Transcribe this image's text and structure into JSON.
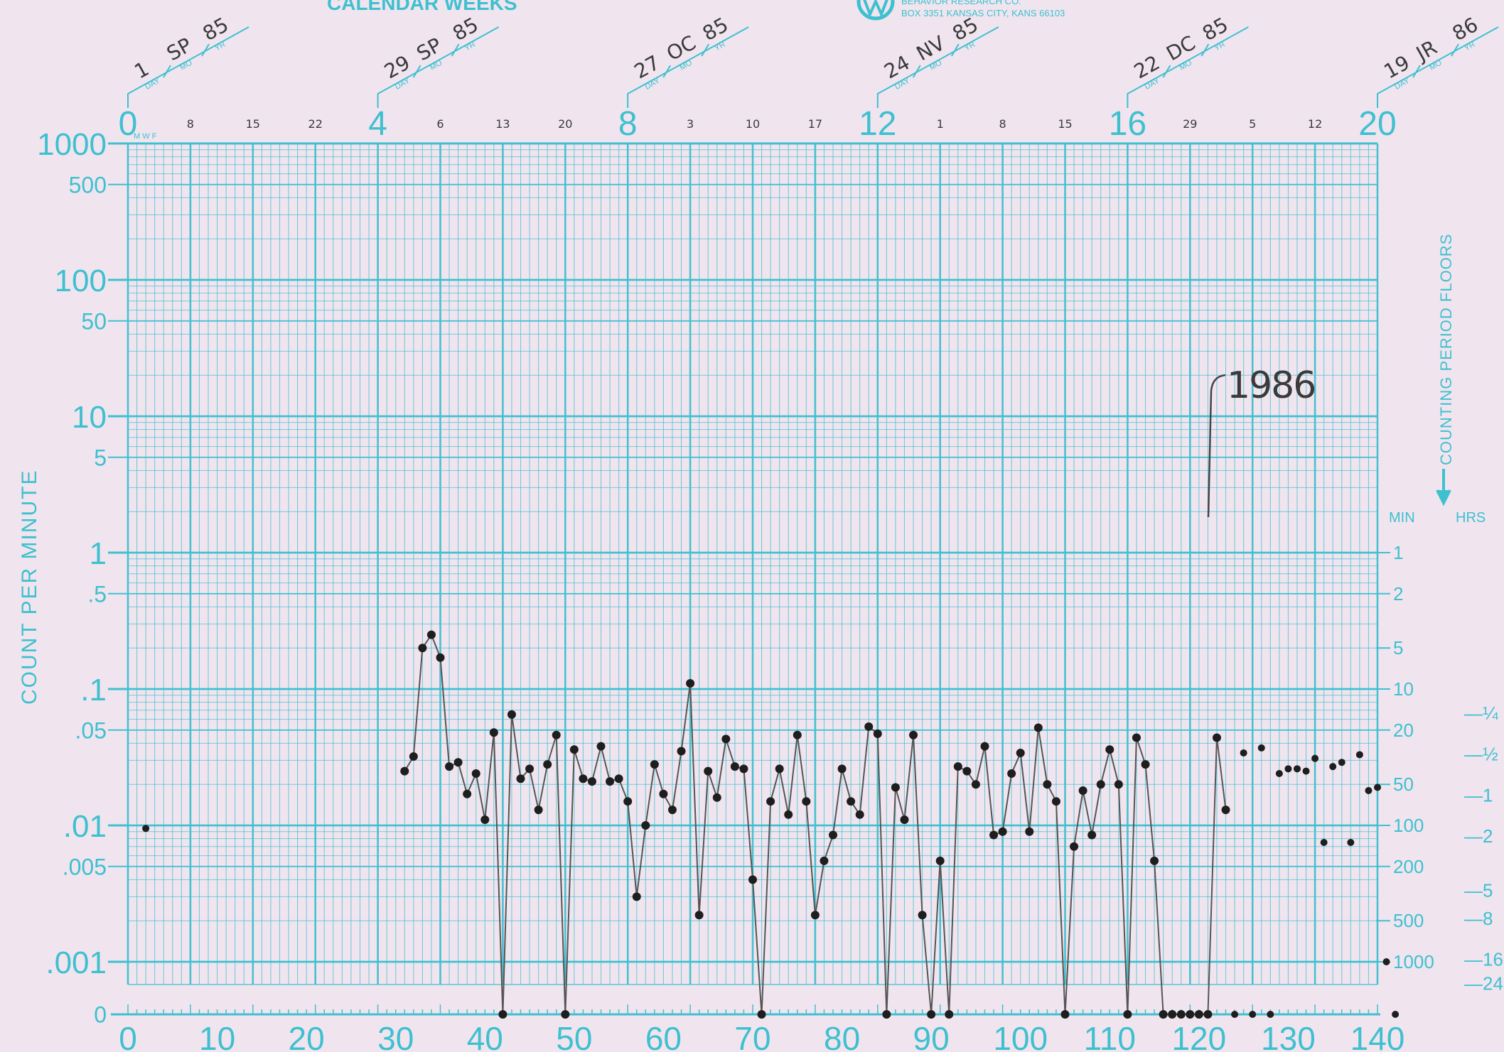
{
  "header": {
    "title": "CALENDAR WEEKS",
    "publisher": "BEHAVIOR RESEARCH CO.",
    "address": "BOX 3351 KANSAS CITY, KANS 66103"
  },
  "calendar_labels": {
    "day": "DAY",
    "month": "MO",
    "year": "YR",
    "dates": [
      {
        "week": 0,
        "day": "1",
        "mo": "SP",
        "yr": "85"
      },
      {
        "week": 4,
        "day": "29",
        "mo": "SP",
        "yr": "85"
      },
      {
        "week": 8,
        "day": "27",
        "mo": "OC",
        "yr": "85"
      },
      {
        "week": 12,
        "day": "24",
        "mo": "NV",
        "yr": "85"
      },
      {
        "week": 16,
        "day": "22",
        "mo": "DC",
        "yr": "85"
      },
      {
        "week": 20,
        "day": "19",
        "mo": "JR",
        "yr": "86"
      }
    ],
    "mwf": "M W F",
    "small_dates": [
      "8",
      "15",
      "22",
      "6",
      "13",
      "20",
      "3",
      "10",
      "17",
      "1",
      "8",
      "15",
      "29",
      "5",
      "12"
    ]
  },
  "week_numbers": [
    "0",
    "4",
    "8",
    "12",
    "16",
    "20"
  ],
  "left_axis": {
    "label": "COUNT PER MINUTE",
    "ticks": [
      "1000",
      "500",
      "100",
      "50",
      "10",
      "5",
      "1",
      ".5",
      ".1",
      ".05",
      ".01",
      ".005",
      ".001",
      "0"
    ]
  },
  "right_axis": {
    "label": "COUNTING PERIOD FLOORS",
    "min_label": "MIN",
    "hrs_label": "HRS",
    "min_ticks": [
      "1",
      "2",
      "5",
      "10",
      "20",
      "50",
      "100",
      "200",
      "500",
      "1000"
    ],
    "hrs_ticks": [
      "¼",
      "½",
      "1",
      "2",
      "5",
      "8",
      "16",
      "24"
    ]
  },
  "annotation": "1986",
  "accent_color": "#3fc0cf",
  "chart_data": {
    "type": "scatter",
    "title": "",
    "xlabel": "",
    "ylabel": "COUNT PER MINUTE",
    "xlim": [
      0,
      140
    ],
    "ylim": [
      0.001,
      1000
    ],
    "y_scale": "log",
    "x_ticks": [
      "0",
      "10",
      "20",
      "30",
      "40",
      "50",
      "60",
      "70",
      "80",
      "90",
      "100",
      "110",
      "120",
      "130",
      "140"
    ],
    "grid": true,
    "series": [
      {
        "connected": true,
        "points": [
          [
            31,
            0.025
          ],
          [
            32,
            0.032
          ],
          [
            33,
            0.2
          ],
          [
            34,
            0.25
          ],
          [
            35,
            0.17
          ],
          [
            36,
            0.027
          ],
          [
            37,
            0.029
          ],
          [
            38,
            0.017
          ],
          [
            39,
            0.024
          ],
          [
            40,
            0.011
          ],
          [
            41,
            0.048
          ],
          [
            42,
            0
          ],
          [
            43,
            0.065
          ],
          [
            44,
            0.022
          ],
          [
            45,
            0.026
          ],
          [
            46,
            0.013
          ],
          [
            47,
            0.028
          ],
          [
            48,
            0.046
          ],
          [
            49,
            0
          ],
          [
            50,
            0.036
          ],
          [
            51,
            0.022
          ],
          [
            52,
            0.021
          ],
          [
            53,
            0.038
          ],
          [
            54,
            0.021
          ],
          [
            55,
            0.022
          ],
          [
            56,
            0.015
          ],
          [
            57,
            0.003
          ],
          [
            58,
            0.01
          ],
          [
            59,
            0.028
          ],
          [
            60,
            0.017
          ],
          [
            61,
            0.013
          ],
          [
            62,
            0.035
          ],
          [
            63,
            0.11
          ],
          [
            64,
            0.0022
          ],
          [
            65,
            0.025
          ],
          [
            66,
            0.016
          ],
          [
            67,
            0.043
          ],
          [
            68,
            0.027
          ],
          [
            69,
            0.026
          ],
          [
            70,
            0.004
          ],
          [
            71,
            0
          ],
          [
            72,
            0.015
          ],
          [
            73,
            0.026
          ],
          [
            74,
            0.012
          ],
          [
            75,
            0.046
          ],
          [
            76,
            0.015
          ],
          [
            77,
            0.0022
          ],
          [
            78,
            0.0055
          ],
          [
            79,
            0.0085
          ],
          [
            80,
            0.026
          ],
          [
            81,
            0.015
          ],
          [
            82,
            0.012
          ],
          [
            83,
            0.053
          ],
          [
            84,
            0.047
          ],
          [
            85,
            0
          ],
          [
            86,
            0.019
          ],
          [
            87,
            0.011
          ],
          [
            88,
            0.046
          ],
          [
            89,
            0.0022
          ],
          [
            90,
            0
          ],
          [
            91,
            0.0055
          ],
          [
            92,
            0
          ],
          [
            93,
            0.027
          ],
          [
            94,
            0.025
          ],
          [
            95,
            0.02
          ],
          [
            96,
            0.038
          ],
          [
            97,
            0.0085
          ],
          [
            98,
            0.009
          ],
          [
            99,
            0.024
          ],
          [
            100,
            0.034
          ],
          [
            101,
            0.009
          ],
          [
            102,
            0.052
          ],
          [
            103,
            0.02
          ],
          [
            104,
            0.015
          ],
          [
            105,
            0
          ],
          [
            106,
            0.007
          ],
          [
            107,
            0.018
          ],
          [
            108,
            0.0085
          ],
          [
            109,
            0.02
          ],
          [
            110,
            0.036
          ],
          [
            111,
            0.02
          ],
          [
            112,
            0
          ],
          [
            113,
            0.044
          ],
          [
            114,
            0.028
          ],
          [
            115,
            0.0055
          ],
          [
            116,
            0
          ],
          [
            117,
            0
          ],
          [
            118,
            0
          ],
          [
            119,
            0
          ],
          [
            120,
            0
          ],
          [
            121,
            0
          ],
          [
            122,
            0.044
          ],
          [
            123,
            0.013
          ]
        ]
      },
      {
        "connected": false,
        "points": [
          [
            124,
            0
          ],
          [
            125,
            0.034
          ],
          [
            126,
            0
          ],
          [
            127,
            0.037
          ],
          [
            128,
            0
          ],
          [
            129,
            0.024
          ],
          [
            130,
            0.026
          ],
          [
            131,
            0.026
          ],
          [
            132,
            0.025
          ],
          [
            133,
            0.031
          ],
          [
            134,
            0.0075
          ],
          [
            135,
            0.027
          ],
          [
            136,
            0.029
          ],
          [
            137,
            0.0075
          ],
          [
            138,
            0.033
          ],
          [
            139,
            0.018
          ],
          [
            140,
            0.019
          ],
          [
            141,
            0.001
          ],
          [
            142,
            0
          ],
          [
            2,
            0.0095
          ]
        ]
      }
    ]
  }
}
